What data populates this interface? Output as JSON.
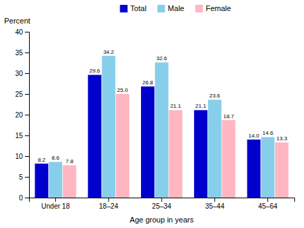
{
  "chart_data": {
    "type": "bar",
    "categories": [
      "Under 18",
      "18–24",
      "25–34",
      "35–44",
      "45–64"
    ],
    "series": [
      {
        "name": "Total",
        "color": "#0000CD",
        "values": [
          8.2,
          29.6,
          26.8,
          21.1,
          14.0
        ],
        "value_labels": [
          "8.2",
          "29.6",
          "26.8",
          "21.1",
          "14.0"
        ]
      },
      {
        "name": "Male",
        "color": "#87CEEB",
        "values": [
          8.6,
          34.2,
          32.6,
          23.6,
          14.6
        ]
      },
      {
        "name": "Female",
        "color": "#FFB6C1",
        "values": [
          7.8,
          25.0,
          21.1,
          18.7,
          13.3
        ],
        "value_labels": [
          "7.8",
          "25.0",
          "21.1",
          "18.7",
          "13.3"
        ]
      }
    ],
    "xlabel": "Age group in years",
    "ylabel": "Percent",
    "ylim": [
      0,
      40
    ],
    "yticks": [
      0,
      5,
      10,
      15,
      20,
      25,
      30,
      35,
      40
    ],
    "grid": false,
    "legend": "top",
    "data_labels": true
  }
}
